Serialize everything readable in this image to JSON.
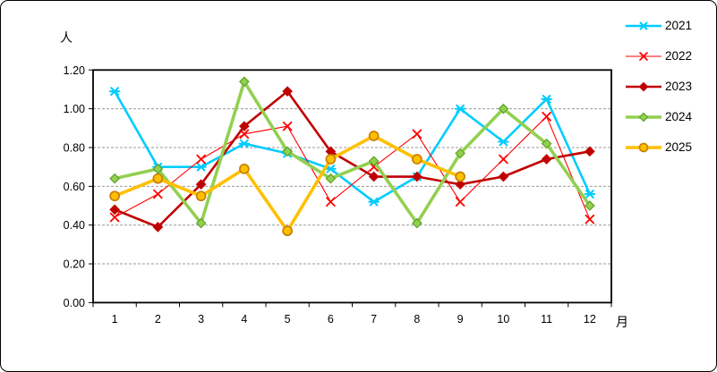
{
  "chart_data": {
    "type": "line",
    "title": "",
    "y_unit": "人",
    "x_unit": "月",
    "categories": [
      "1",
      "2",
      "3",
      "4",
      "5",
      "6",
      "7",
      "8",
      "9",
      "10",
      "11",
      "12"
    ],
    "y_tick_labels": [
      "0.00",
      "0.20",
      "0.40",
      "0.60",
      "0.80",
      "1.00",
      "1.20"
    ],
    "ylim": [
      0,
      1.2
    ],
    "ytick_step": 0.2,
    "grid": "horizontal-dashed",
    "grid_color": "#999999",
    "frame_color": "#000000",
    "legend_position": "top-right-outside",
    "series": [
      {
        "name": "2021",
        "color": "#00CCFF",
        "marker": "star",
        "marker_stroke": "#00CCFF",
        "line_width": 2.6,
        "values": [
          1.09,
          0.7,
          0.7,
          0.82,
          0.77,
          0.69,
          0.52,
          0.65,
          1.0,
          0.83,
          1.05,
          0.56
        ]
      },
      {
        "name": "2022",
        "color": "#FF0000",
        "marker": "x",
        "marker_stroke": "#FF0000",
        "line_width": 1.1,
        "values": [
          0.44,
          0.56,
          0.74,
          0.87,
          0.91,
          0.52,
          0.7,
          0.87,
          0.52,
          0.74,
          0.96,
          0.43
        ]
      },
      {
        "name": "2023",
        "color": "#C00000",
        "marker": "diamond",
        "marker_stroke": "#C00000",
        "line_width": 2.6,
        "values": [
          0.48,
          0.39,
          0.61,
          0.91,
          1.09,
          0.78,
          0.65,
          0.65,
          0.61,
          0.65,
          0.74,
          0.78
        ]
      },
      {
        "name": "2024",
        "color": "#92D050",
        "marker": "diamond",
        "marker_stroke": "#5EA226",
        "line_width": 3.6,
        "values": [
          0.64,
          0.69,
          0.41,
          1.14,
          0.78,
          0.64,
          0.73,
          0.41,
          0.77,
          1.0,
          0.82,
          0.5
        ]
      },
      {
        "name": "2025",
        "color": "#FFC000",
        "marker": "circle",
        "marker_stroke": "#C77F00",
        "line_width": 3.6,
        "values": [
          0.55,
          0.64,
          0.55,
          0.69,
          0.37,
          0.74,
          0.86,
          0.74,
          0.65
        ]
      }
    ]
  }
}
